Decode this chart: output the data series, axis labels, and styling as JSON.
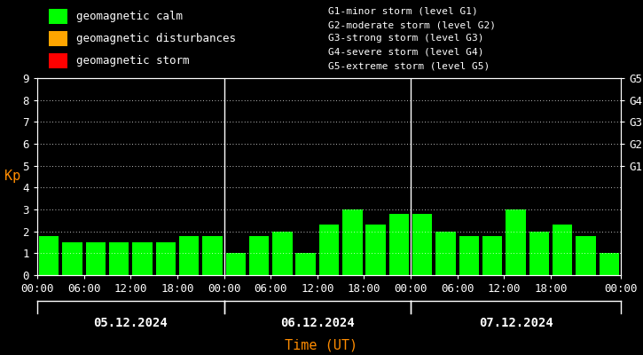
{
  "background_color": "#000000",
  "plot_bg_color": "#000000",
  "bar_color_calm": "#00ff00",
  "bar_color_disturbance": "#ffa500",
  "bar_color_storm": "#ff0000",
  "grid_color": "#ffffff",
  "axis_color": "#ffffff",
  "text_color": "#ffffff",
  "xlabel_color": "#ff8c00",
  "ylabel_color": "#ff8c00",
  "ylabel": "Kp",
  "xlabel": "Time (UT)",
  "ylim": [
    0,
    9
  ],
  "yticks": [
    0,
    1,
    2,
    3,
    4,
    5,
    6,
    7,
    8,
    9
  ],
  "right_labels": [
    "G1",
    "G2",
    "G3",
    "G4",
    "G5"
  ],
  "right_label_yvals": [
    5,
    6,
    7,
    8,
    9
  ],
  "day_labels": [
    "05.12.2024",
    "06.12.2024",
    "07.12.2024"
  ],
  "legend_items": [
    {
      "label": "geomagnetic calm",
      "color": "#00ff00"
    },
    {
      "label": "geomagnetic disturbances",
      "color": "#ffa500"
    },
    {
      "label": "geomagnetic storm",
      "color": "#ff0000"
    }
  ],
  "legend2_lines": [
    "G1-minor storm (level G1)",
    "G2-moderate storm (level G2)",
    "G3-strong storm (level G3)",
    "G4-severe storm (level G4)",
    "G5-extreme storm (level G5)"
  ],
  "kp_values": [
    1.8,
    1.5,
    1.5,
    1.5,
    1.5,
    1.5,
    1.8,
    1.8,
    1.0,
    1.8,
    2.0,
    1.0,
    2.3,
    3.0,
    2.3,
    2.8,
    2.8,
    2.0,
    1.8,
    1.8,
    3.0,
    2.0,
    2.3,
    1.8,
    1.0
  ],
  "n_bars_day1": 8,
  "n_bars_day2": 8,
  "n_bars_day3": 9,
  "vline_color": "#ffffff",
  "font_family": "monospace",
  "font_size": 9,
  "legend_font_size": 9,
  "legend2_font_size": 8
}
